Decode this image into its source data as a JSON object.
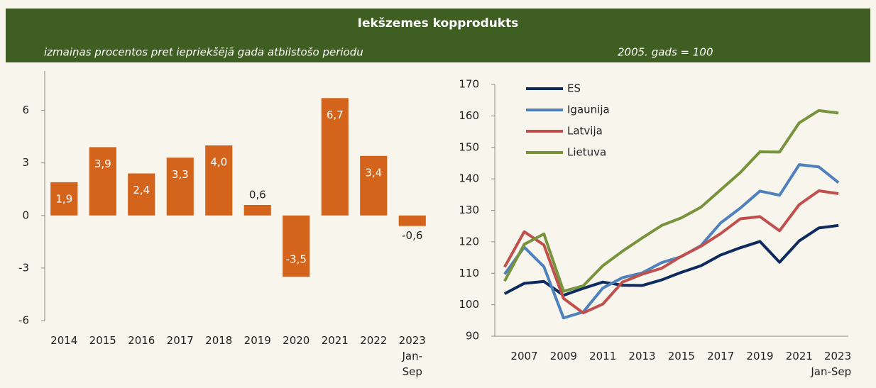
{
  "title": "Iekšzemes kopprodukts",
  "chart_data": [
    {
      "type": "bar",
      "subtitle": "izmaiņas procentos pret iepriekšējā gada atbilstošo periodu",
      "categories": [
        "2014",
        "2015",
        "2016",
        "2017",
        "2018",
        "2019",
        "2020",
        "2021",
        "2022",
        "2023 Jan-Sep"
      ],
      "values": [
        1.9,
        3.9,
        2.4,
        3.3,
        4.0,
        0.6,
        -3.5,
        6.7,
        3.4,
        -0.6
      ],
      "value_labels": [
        "1,9",
        "3,9",
        "2,4",
        "3,3",
        "4,0",
        "0,6",
        "-3,5",
        "6,7",
        "3,4",
        "-0,6"
      ],
      "color": "#d4631b",
      "ylim": [
        -6,
        8.25
      ],
      "yticks": [
        -6,
        -3,
        0,
        3,
        6
      ]
    },
    {
      "type": "line",
      "subtitle": "2005. gads = 100",
      "categories": [
        null,
        "2007",
        null,
        "2009",
        null,
        "2011",
        null,
        "2013",
        null,
        "2015",
        null,
        "2017",
        null,
        "2019",
        null,
        "2021",
        null,
        "2023 Jan-Sep"
      ],
      "series": [
        {
          "name": "ES",
          "color": "#0d2b5e",
          "values": [
            103.5,
            106.8,
            107.4,
            103,
            105.2,
            107.2,
            106.2,
            106.1,
            107.9,
            110.3,
            112.4,
            115.8,
            118.1,
            120.1,
            113.5,
            120.3,
            124.4,
            125.2
          ]
        },
        {
          "name": "Igaunija",
          "color": "#4f81bd",
          "values": [
            109.7,
            118.3,
            112.1,
            95.8,
            97.7,
            105.3,
            108.6,
            110.1,
            113.4,
            115.3,
            118.8,
            126.0,
            130.7,
            136.1,
            134.8,
            144.5,
            143.8,
            138.8
          ]
        },
        {
          "name": "Latvija",
          "color": "#c0504d",
          "values": [
            112,
            123.2,
            119,
            102,
            97.4,
            100.2,
            107.2,
            109.7,
            111.6,
            115.4,
            118.6,
            122.6,
            127.3,
            128,
            123.5,
            131.8,
            136.2,
            135.3
          ]
        },
        {
          "name": "Lietuva",
          "color": "#77933c",
          "values": [
            107.5,
            119.2,
            122.5,
            104.3,
            106,
            112.4,
            117,
            121.2,
            125.2,
            127.6,
            131,
            136.5,
            142,
            148.6,
            148.5,
            157.8,
            161.7,
            160.9
          ]
        }
      ],
      "ylim": [
        90,
        170
      ],
      "yticks": [
        90,
        100,
        110,
        120,
        130,
        140,
        150,
        160,
        170
      ],
      "legend": "upper left"
    }
  ]
}
